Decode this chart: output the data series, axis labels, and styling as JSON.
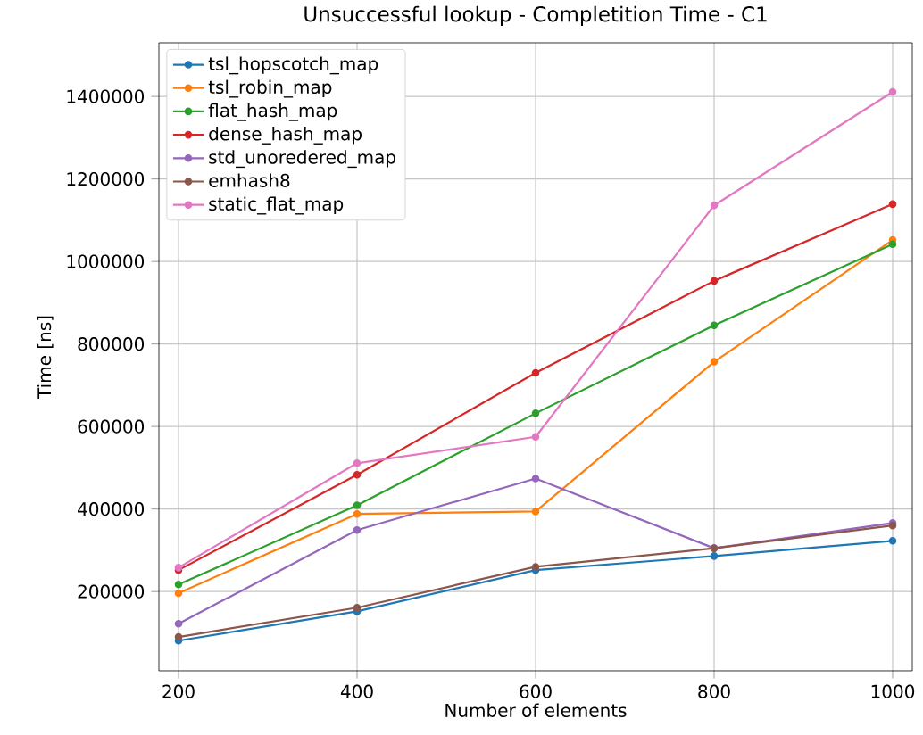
{
  "chart_data": {
    "type": "line",
    "title": "Unsuccessful lookup - Completition Time - C1",
    "xlabel": "Number of elements",
    "ylabel": "Time [ns]",
    "x": [
      200,
      400,
      600,
      800,
      1000
    ],
    "series": [
      {
        "name": "tsl_hopscotch_map",
        "color": "#1f77b4",
        "values": [
          81000,
          152000,
          252000,
          286000,
          323000
        ]
      },
      {
        "name": "tsl_robin_map",
        "color": "#ff7f0e",
        "values": [
          196000,
          388000,
          394000,
          757000,
          1052000
        ]
      },
      {
        "name": "flat_hash_map",
        "color": "#2ca02c",
        "values": [
          217000,
          409000,
          632000,
          845000,
          1042000
        ]
      },
      {
        "name": "dense_hash_map",
        "color": "#d62728",
        "values": [
          252000,
          483000,
          730000,
          953000,
          1139000
        ]
      },
      {
        "name": "std_unoredered_map",
        "color": "#9467bd",
        "values": [
          122000,
          349000,
          474000,
          305000,
          366000
        ]
      },
      {
        "name": "emhash8",
        "color": "#8c564b",
        "values": [
          90000,
          161000,
          260000,
          305000,
          360000
        ]
      },
      {
        "name": "static_flat_map",
        "color": "#e377c2",
        "values": [
          258000,
          511000,
          575000,
          1136000,
          1411000
        ]
      }
    ],
    "xlim": [
      178,
      1022
    ],
    "ylim": [
      8000,
      1530000
    ],
    "xticks": [
      200,
      400,
      600,
      800,
      1000
    ],
    "yticks": [
      200000,
      400000,
      600000,
      800000,
      1000000,
      1200000,
      1400000
    ],
    "grid": true,
    "legend": "top left",
    "marker": "circle",
    "line_style": "solid"
  }
}
